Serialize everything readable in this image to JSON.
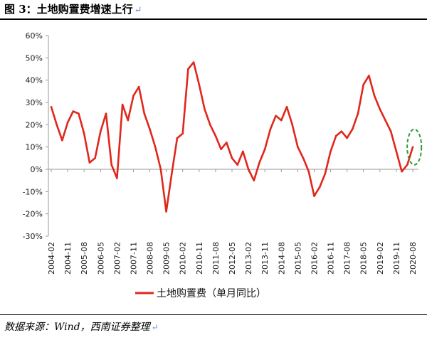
{
  "title": "图 3：土地购置费增速上行",
  "return_mark": "↵",
  "source": "数据来源：Wind，西南证券整理",
  "colors": {
    "series": "#e0271c",
    "highlight": "#2e9e3a",
    "axis": "#999999"
  },
  "chart_data": {
    "type": "line",
    "title": "图 3：土地购置费增速上行",
    "xlabel": "",
    "ylabel": "",
    "ylim": [
      -30,
      60
    ],
    "yticks": [
      "-30%",
      "-20%",
      "-10%",
      "0%",
      "10%",
      "20%",
      "30%",
      "40%",
      "50%",
      "60%"
    ],
    "xticks": [
      "2004-02",
      "2004-11",
      "2005-08",
      "2006-05",
      "2007-02",
      "2007-11",
      "2008-08",
      "2009-05",
      "2010-02",
      "2010-11",
      "2011-08",
      "2012-05",
      "2013-02",
      "2013-11",
      "2014-08",
      "2015-05",
      "2016-02",
      "2016-11",
      "2017-08",
      "2018-05",
      "2019-02",
      "2019-11",
      "2020-08"
    ],
    "grid": false,
    "legend": "bottom",
    "annotation": "green dashed ellipse highlighting the latest values (2020)",
    "series": [
      {
        "name": "土地购置费（单月同比）",
        "x": [
          "2004-02",
          "2004-05",
          "2004-08",
          "2004-11",
          "2005-02",
          "2005-05",
          "2005-08",
          "2005-11",
          "2006-02",
          "2006-05",
          "2006-08",
          "2006-11",
          "2007-02",
          "2007-05",
          "2007-08",
          "2007-11",
          "2008-02",
          "2008-05",
          "2008-08",
          "2008-11",
          "2009-02",
          "2009-05",
          "2009-08",
          "2009-11",
          "2010-02",
          "2010-05",
          "2010-08",
          "2010-11",
          "2011-02",
          "2011-05",
          "2011-08",
          "2011-11",
          "2012-02",
          "2012-05",
          "2012-08",
          "2012-11",
          "2013-02",
          "2013-05",
          "2013-08",
          "2013-11",
          "2014-02",
          "2014-05",
          "2014-08",
          "2014-11",
          "2015-02",
          "2015-05",
          "2015-08",
          "2015-11",
          "2016-02",
          "2016-05",
          "2016-08",
          "2016-11",
          "2017-02",
          "2017-05",
          "2017-08",
          "2017-11",
          "2018-02",
          "2018-05",
          "2018-08",
          "2018-11",
          "2019-02",
          "2019-05",
          "2019-08",
          "2019-11",
          "2020-02",
          "2020-05",
          "2020-08"
        ],
        "y": [
          28,
          20,
          13,
          21,
          26,
          25,
          16,
          3,
          5,
          17,
          25,
          2,
          -4,
          29,
          22,
          33,
          37,
          25,
          18,
          10,
          0,
          -19,
          -2,
          14,
          16,
          45,
          48,
          38,
          27,
          20,
          15,
          9,
          12,
          5,
          2,
          8,
          0,
          -5,
          3,
          9,
          18,
          24,
          22,
          28,
          20,
          10,
          5,
          -1,
          -12,
          -8,
          -2,
          8,
          15,
          17,
          14,
          18,
          25,
          38,
          42,
          33,
          27,
          22,
          17,
          8,
          -1,
          2,
          10
        ]
      }
    ]
  },
  "legend": {
    "label": "土地购置费（单月同比）"
  }
}
